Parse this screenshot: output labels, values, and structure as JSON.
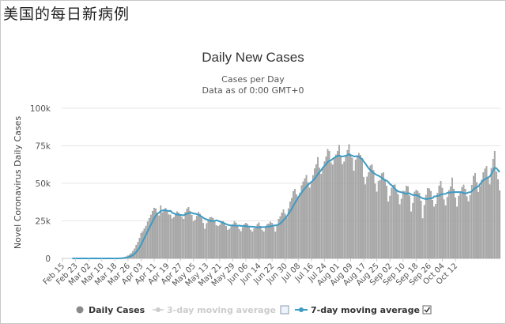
{
  "page": {
    "title": "美国的每日新病例"
  },
  "colors": {
    "bar": "#a9a9a9",
    "bar_stroke": "#8c8c8c",
    "line": "#3c9bc4",
    "grid": "#e6e6e6",
    "text": "#333333"
  },
  "chart_data": {
    "type": "bar",
    "title": "Daily New Cases",
    "subtitle_lines": [
      "Cases per Day",
      "Data as of 0:00 GMT+0"
    ],
    "xlabel": "",
    "ylabel": "Novel Coronavirus Daily Cases",
    "ylim": [
      0,
      100000
    ],
    "yticks": [
      0,
      25000,
      50000,
      75000,
      100000
    ],
    "ytick_labels": [
      "0",
      "25k",
      "50k",
      "75k",
      "100k"
    ],
    "grid": true,
    "legend_position": "bottom",
    "start_date": "Feb 15",
    "xtick_labels": [
      "Feb 15",
      "Feb 23",
      "Mar 02",
      "Mar 10",
      "Mar 18",
      "Mar 26",
      "Apr 03",
      "Apr 11",
      "Apr 19",
      "Apr 27",
      "May 05",
      "May 13",
      "May 21",
      "May 29",
      "Jun 06",
      "Jun 14",
      "Jun 22",
      "Jun 30",
      "Jul 08",
      "Jul 16",
      "Jul 24",
      "Aug 01",
      "Aug 09",
      "Aug 17",
      "Aug 25",
      "Sep 02",
      "Sep 10",
      "Sep 18",
      "Sep 26",
      "Oct 04",
      "Oct 12"
    ],
    "series": [
      {
        "name": "Daily Cases",
        "type": "bar",
        "values": [
          0,
          0,
          0,
          0,
          0,
          0,
          0,
          0,
          0,
          0,
          0,
          0,
          0,
          0,
          0,
          0,
          0,
          0,
          0,
          0,
          0,
          0,
          0,
          0,
          0,
          0,
          0,
          0,
          0,
          0,
          0,
          0,
          0,
          0,
          100,
          200,
          350,
          600,
          900,
          1300,
          1900,
          2600,
          3400,
          4800,
          6500,
          8800,
          10800,
          13500,
          16800,
          18000,
          19800,
          21600,
          24500,
          26800,
          29000,
          31500,
          33600,
          33200,
          30500,
          28500,
          35200,
          30600,
          32700,
          33500,
          31500,
          29200,
          29000,
          26500,
          27400,
          29800,
          31200,
          30400,
          28800,
          27600,
          26200,
          30800,
          33100,
          34100,
          31500,
          28800,
          24600,
          25700,
          28200,
          30900,
          29600,
          27100,
          23500,
          19600,
          23400,
          25400,
          27300,
          27500,
          26800,
          25100,
          22100,
          21400,
          22200,
          24100,
          24700,
          23800,
          21400,
          18900,
          19600,
          21200,
          22800,
          24600,
          23700,
          22000,
          19400,
          18000,
          20800,
          22700,
          23500,
          22900,
          21200,
          19000,
          17800,
          19800,
          21300,
          22700,
          23800,
          21500,
          18900,
          17800,
          20900,
          22800,
          23100,
          24400,
          23600,
          21300,
          17700,
          22200,
          26200,
          27900,
          30400,
          32500,
          29700,
          27100,
          33200,
          37800,
          40100,
          44800,
          46200,
          42500,
          40300,
          43700,
          48600,
          51100,
          53200,
          55500,
          50700,
          47000,
          50300,
          55300,
          59800,
          62500,
          67400,
          60300,
          56200,
          60800,
          64500,
          67700,
          72800,
          71500,
          63800,
          62400,
          66500,
          69100,
          71400,
          75400,
          67600,
          62700,
          64400,
          67900,
          72100,
          75900,
          69500,
          66900,
          58300,
          65700,
          68400,
          70100,
          68800,
          65900,
          54200,
          49200,
          54300,
          57300,
          61800,
          62600,
          58700,
          49700,
          44300,
          51400,
          52300,
          56600,
          57200,
          52800,
          48300,
          37800,
          41600,
          46900,
          48800,
          49200,
          45400,
          42600,
          35900,
          39600,
          45000,
          44600,
          48300,
          47900,
          41800,
          31100,
          36800,
          44300,
          45600,
          44800,
          43500,
          38300,
          26600,
          35400,
          42200,
          46700,
          46400,
          44800,
          38900,
          34400,
          36200,
          43600,
          48300,
          51500,
          46900,
          39200,
          35200,
          40800,
          45400,
          47800,
          53700,
          46300,
          40400,
          34400,
          41600,
          44600,
          47400,
          49000,
          46200,
          41200,
          37900,
          42100,
          48900,
          54900,
          56800,
          50700,
          44200,
          48200,
          52200,
          57200,
          59700,
          61400,
          54300,
          49200,
          60100,
          66200,
          71400,
          57800,
          52500,
          45200
        ]
      },
      {
        "name": "3-day moving average",
        "type": "line",
        "enabled": false
      },
      {
        "name": "7-day moving average",
        "type": "line",
        "enabled": true,
        "computed_from": "Daily Cases"
      }
    ]
  },
  "legend": {
    "items": [
      {
        "label": "Daily Cases",
        "enabled": true
      },
      {
        "label": "3-day moving average",
        "enabled": false
      },
      {
        "label": "7-day moving average",
        "enabled": true
      }
    ]
  }
}
